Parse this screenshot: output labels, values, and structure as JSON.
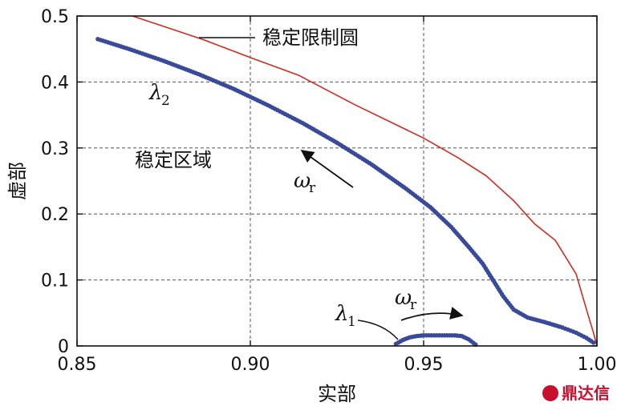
{
  "chart_data": {
    "type": "line",
    "xlabel": "实部",
    "ylabel": "虚部",
    "xlim": [
      0.85,
      1.0
    ],
    "ylim": [
      0,
      0.5
    ],
    "xticks": [
      0.85,
      0.9,
      0.95,
      1.0
    ],
    "xtick_labels": [
      "0.85",
      "0.90",
      "0.95",
      "1.00"
    ],
    "yticks": [
      0,
      0.1,
      0.2,
      0.3,
      0.4,
      0.5
    ],
    "ytick_labels": [
      "0",
      "0.1",
      "0.2",
      "0.3",
      "0.4",
      "0.5"
    ],
    "grid": true,
    "series": [
      {
        "name": "稳定限制圆",
        "style": "line",
        "color": "#d22b20",
        "x": [
          0.866,
          0.886,
          0.9,
          0.914,
          0.93,
          0.95,
          0.96,
          0.968,
          0.976,
          0.982,
          0.988,
          0.994,
          0.997,
          0.999,
          1.0
        ],
        "y": [
          0.5,
          0.465,
          0.437,
          0.41,
          0.366,
          0.315,
          0.285,
          0.258,
          0.22,
          0.185,
          0.16,
          0.109,
          0.055,
          0.02,
          0.0
        ]
      },
      {
        "name": "λ2",
        "style": "dots",
        "color": "#3a4a9a",
        "x": [
          0.856,
          0.865,
          0.875,
          0.885,
          0.895,
          0.905,
          0.915,
          0.925,
          0.935,
          0.945,
          0.952,
          0.958,
          0.963,
          0.967,
          0.97,
          0.973,
          0.976,
          0.98,
          0.985,
          0.99,
          0.994,
          0.997,
          0.999
        ],
        "y": [
          0.465,
          0.45,
          0.432,
          0.412,
          0.39,
          0.365,
          0.338,
          0.308,
          0.275,
          0.238,
          0.21,
          0.18,
          0.15,
          0.125,
          0.1,
          0.075,
          0.055,
          0.043,
          0.036,
          0.028,
          0.02,
          0.012,
          0.005
        ]
      },
      {
        "name": "λ1",
        "style": "dots",
        "color": "#3a4a9a",
        "x": [
          0.942,
          0.944,
          0.946,
          0.948,
          0.95,
          0.953,
          0.956,
          0.959,
          0.961,
          0.963,
          0.965
        ],
        "y": [
          0.003,
          0.009,
          0.013,
          0.015,
          0.016,
          0.016,
          0.016,
          0.016,
          0.015,
          0.01,
          0.002
        ]
      }
    ],
    "annotations": {
      "stability_circle": "稳定限制圆",
      "stable_region": "稳定区域",
      "lambda2": "λ",
      "lambda2_sub": "2",
      "lambda1": "λ",
      "lambda1_sub": "1",
      "omega_upper": "ω",
      "omega_upper_sub": "r",
      "omega_lower": "ω",
      "omega_lower_sub": "r"
    },
    "watermark": "鼎达信"
  }
}
